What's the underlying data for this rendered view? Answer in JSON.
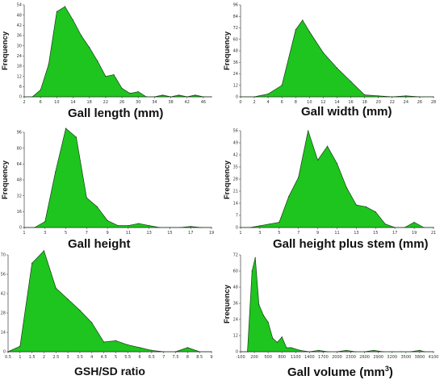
{
  "colors": {
    "fill": "#1ec51e",
    "stroke": "#1a3d1a",
    "axis": "#555555"
  },
  "chart_data": [
    {
      "type": "area",
      "title": "Gall length (mm)",
      "ylabel": "Frequency",
      "xlim": [
        2,
        48
      ],
      "ylim": [
        0,
        54
      ],
      "xticks": [
        2,
        6,
        10,
        14,
        18,
        22,
        26,
        30,
        34,
        38,
        42,
        46
      ],
      "yticks": [
        0,
        6,
        12,
        18,
        24,
        30,
        36,
        42,
        48,
        54
      ],
      "x": [
        2,
        4,
        6,
        8,
        10,
        12,
        14,
        16,
        18,
        20,
        22,
        24,
        26,
        28,
        30,
        32,
        34,
        36,
        38,
        40,
        42,
        44,
        46,
        48
      ],
      "values": [
        0,
        0,
        4,
        19,
        50,
        53,
        45,
        36,
        29,
        21,
        12,
        13,
        5,
        2,
        3,
        0,
        0,
        1,
        0,
        1,
        0,
        1,
        0,
        0
      ]
    },
    {
      "type": "area",
      "title": "Gall width (mm)",
      "ylabel": "Frequency",
      "xlim": [
        0,
        28
      ],
      "ylim": [
        0,
        96
      ],
      "xticks": [
        0,
        2,
        4,
        6,
        8,
        10,
        12,
        14,
        16,
        18,
        20,
        22,
        24,
        26,
        28
      ],
      "yticks": [
        0,
        12,
        24,
        36,
        48,
        60,
        72,
        84,
        96
      ],
      "x": [
        0,
        2,
        4,
        6,
        8,
        9,
        10,
        12,
        14,
        16,
        18,
        20,
        22,
        24,
        26,
        28
      ],
      "values": [
        0,
        0,
        3,
        12,
        70,
        80,
        68,
        46,
        30,
        16,
        2,
        1,
        0,
        1,
        0,
        0
      ]
    },
    {
      "type": "area",
      "title": "Gall height",
      "ylabel": "Frequency",
      "xlim": [
        1,
        19
      ],
      "ylim": [
        0,
        96
      ],
      "xticks": [
        1,
        3,
        5,
        7,
        9,
        11,
        13,
        15,
        17,
        19
      ],
      "yticks": [
        0,
        16,
        32,
        48,
        64,
        80,
        96
      ],
      "x": [
        1,
        2,
        3,
        4,
        5,
        6,
        7,
        8,
        9,
        10,
        11,
        12,
        13,
        14,
        15,
        16,
        17,
        18,
        19
      ],
      "values": [
        0,
        0,
        6,
        56,
        100,
        91,
        30,
        21,
        7,
        2,
        2,
        4,
        2,
        0,
        0,
        0,
        1,
        0,
        0
      ]
    },
    {
      "type": "area",
      "title": "Gall height plus stem (mm)",
      "ylabel": "Frequency",
      "xlim": [
        1,
        21
      ],
      "ylim": [
        0,
        56
      ],
      "xticks": [
        1,
        3,
        5,
        7,
        9,
        11,
        13,
        15,
        17,
        19,
        21
      ],
      "yticks": [
        0,
        7,
        14,
        21,
        28,
        35,
        42,
        49,
        56
      ],
      "x": [
        1,
        2,
        3,
        4,
        5,
        6,
        7,
        8,
        9,
        10,
        11,
        12,
        13,
        14,
        15,
        16,
        17,
        18,
        19,
        20,
        21
      ],
      "values": [
        0,
        0,
        1,
        2,
        3,
        18,
        29,
        56,
        39,
        47,
        37,
        23,
        13,
        12,
        9,
        2,
        0,
        0,
        3,
        0,
        0
      ]
    },
    {
      "type": "area",
      "title": "GSH/SD ratio",
      "ylabel": "",
      "xlim": [
        0.5,
        9
      ],
      "ylim": [
        0,
        70
      ],
      "xticks": [
        0.5,
        1,
        1.5,
        2,
        2.5,
        3,
        3.5,
        4,
        4.5,
        5,
        5.5,
        6,
        6.5,
        7,
        7.5,
        8,
        8.5,
        9
      ],
      "yticks": [
        0,
        14,
        28,
        42,
        56,
        70
      ],
      "x": [
        0.5,
        1,
        1.5,
        2,
        2.5,
        3,
        3.5,
        4,
        4.5,
        5,
        5.5,
        6,
        6.5,
        7,
        7.5,
        8,
        8.5,
        9
      ],
      "values": [
        0,
        4,
        64,
        73,
        46,
        38,
        30,
        21,
        7,
        8,
        5,
        3,
        1,
        0,
        0,
        3,
        0,
        0
      ]
    },
    {
      "type": "area",
      "title": "Gall volume (mm",
      "title_sup": "3",
      "title_end": ")",
      "ylabel": "Frequency",
      "xlim": [
        -100,
        4100
      ],
      "ylim": [
        0,
        72
      ],
      "xticks": [
        -100,
        200,
        500,
        800,
        1100,
        1400,
        1700,
        2000,
        2300,
        2600,
        2900,
        3200,
        3500,
        3800,
        4100
      ],
      "yticks": [
        0,
        12,
        24,
        36,
        48,
        60,
        72
      ],
      "x": [
        -100,
        50,
        150,
        220,
        300,
        400,
        500,
        600,
        700,
        800,
        900,
        1000,
        1200,
        1400,
        1600,
        1800,
        2000,
        2200,
        2400,
        2600,
        2800,
        3000,
        3200,
        3400,
        3600,
        3800,
        3900,
        4100
      ],
      "values": [
        0,
        0,
        60,
        70,
        35,
        27,
        22,
        10,
        7,
        11,
        3,
        3,
        1,
        0,
        1,
        0,
        0,
        1,
        0,
        0,
        1,
        0,
        0,
        0,
        0,
        1,
        0,
        0
      ]
    }
  ]
}
